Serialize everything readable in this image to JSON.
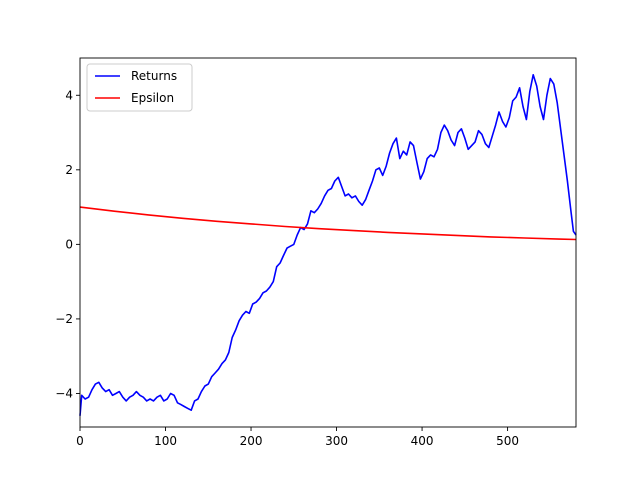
{
  "chart_data": {
    "type": "line",
    "title": "",
    "xlabel": "",
    "ylabel": "",
    "xlim": [
      0,
      580
    ],
    "ylim": [
      -4.9,
      5.0
    ],
    "grid": false,
    "legend_position": "upper-left",
    "x_ticks": [
      0,
      100,
      200,
      300,
      400,
      500
    ],
    "x_tick_labels": [
      "0",
      "100",
      "200",
      "300",
      "400",
      "500"
    ],
    "y_ticks": [
      -4,
      -2,
      0,
      2,
      4
    ],
    "y_tick_labels": [
      "−4",
      "−2",
      "0",
      "2",
      "4"
    ],
    "series": [
      {
        "name": "Returns",
        "color": "#0000ff",
        "points": [
          [
            0,
            -4.6
          ],
          [
            2,
            -4.05
          ],
          [
            6,
            -4.15
          ],
          [
            10,
            -4.1
          ],
          [
            14,
            -3.9
          ],
          [
            18,
            -3.75
          ],
          [
            22,
            -3.7
          ],
          [
            26,
            -3.85
          ],
          [
            30,
            -3.95
          ],
          [
            34,
            -3.9
          ],
          [
            38,
            -4.05
          ],
          [
            42,
            -4.0
          ],
          [
            46,
            -3.95
          ],
          [
            50,
            -4.1
          ],
          [
            54,
            -4.2
          ],
          [
            58,
            -4.1
          ],
          [
            62,
            -4.05
          ],
          [
            66,
            -3.95
          ],
          [
            70,
            -4.05
          ],
          [
            74,
            -4.1
          ],
          [
            78,
            -4.2
          ],
          [
            82,
            -4.15
          ],
          [
            86,
            -4.2
          ],
          [
            90,
            -4.1
          ],
          [
            94,
            -4.05
          ],
          [
            98,
            -4.2
          ],
          [
            102,
            -4.15
          ],
          [
            106,
            -4.0
          ],
          [
            110,
            -4.05
          ],
          [
            114,
            -4.25
          ],
          [
            118,
            -4.3
          ],
          [
            122,
            -4.35
          ],
          [
            126,
            -4.4
          ],
          [
            130,
            -4.45
          ],
          [
            134,
            -4.2
          ],
          [
            138,
            -4.15
          ],
          [
            142,
            -3.95
          ],
          [
            146,
            -3.8
          ],
          [
            150,
            -3.75
          ],
          [
            154,
            -3.55
          ],
          [
            158,
            -3.45
          ],
          [
            162,
            -3.35
          ],
          [
            166,
            -3.2
          ],
          [
            170,
            -3.1
          ],
          [
            174,
            -2.9
          ],
          [
            178,
            -2.5
          ],
          [
            182,
            -2.3
          ],
          [
            186,
            -2.05
          ],
          [
            190,
            -1.9
          ],
          [
            194,
            -1.8
          ],
          [
            198,
            -1.85
          ],
          [
            202,
            -1.6
          ],
          [
            206,
            -1.55
          ],
          [
            210,
            -1.45
          ],
          [
            214,
            -1.3
          ],
          [
            218,
            -1.25
          ],
          [
            222,
            -1.15
          ],
          [
            226,
            -1.0
          ],
          [
            230,
            -0.6
          ],
          [
            234,
            -0.5
          ],
          [
            238,
            -0.3
          ],
          [
            242,
            -0.1
          ],
          [
            246,
            -0.05
          ],
          [
            250,
            0.0
          ],
          [
            254,
            0.25
          ],
          [
            258,
            0.45
          ],
          [
            262,
            0.4
          ],
          [
            266,
            0.55
          ],
          [
            270,
            0.9
          ],
          [
            274,
            0.85
          ],
          [
            278,
            0.95
          ],
          [
            282,
            1.1
          ],
          [
            286,
            1.3
          ],
          [
            290,
            1.45
          ],
          [
            294,
            1.5
          ],
          [
            298,
            1.7
          ],
          [
            302,
            1.8
          ],
          [
            306,
            1.55
          ],
          [
            310,
            1.3
          ],
          [
            314,
            1.35
          ],
          [
            318,
            1.25
          ],
          [
            322,
            1.3
          ],
          [
            326,
            1.15
          ],
          [
            330,
            1.05
          ],
          [
            334,
            1.2
          ],
          [
            338,
            1.45
          ],
          [
            342,
            1.7
          ],
          [
            346,
            2.0
          ],
          [
            350,
            2.05
          ],
          [
            354,
            1.85
          ],
          [
            358,
            2.1
          ],
          [
            362,
            2.45
          ],
          [
            366,
            2.7
          ],
          [
            370,
            2.85
          ],
          [
            374,
            2.3
          ],
          [
            378,
            2.5
          ],
          [
            382,
            2.4
          ],
          [
            386,
            2.75
          ],
          [
            390,
            2.65
          ],
          [
            394,
            2.2
          ],
          [
            398,
            1.75
          ],
          [
            402,
            1.95
          ],
          [
            406,
            2.3
          ],
          [
            410,
            2.4
          ],
          [
            414,
            2.35
          ],
          [
            418,
            2.55
          ],
          [
            422,
            3.0
          ],
          [
            426,
            3.2
          ],
          [
            430,
            3.05
          ],
          [
            434,
            2.8
          ],
          [
            438,
            2.65
          ],
          [
            442,
            3.0
          ],
          [
            446,
            3.1
          ],
          [
            450,
            2.85
          ],
          [
            454,
            2.55
          ],
          [
            458,
            2.65
          ],
          [
            462,
            2.75
          ],
          [
            466,
            3.05
          ],
          [
            470,
            2.95
          ],
          [
            474,
            2.7
          ],
          [
            478,
            2.6
          ],
          [
            482,
            2.9
          ],
          [
            486,
            3.2
          ],
          [
            490,
            3.55
          ],
          [
            494,
            3.3
          ],
          [
            498,
            3.15
          ],
          [
            502,
            3.4
          ],
          [
            506,
            3.85
          ],
          [
            510,
            3.95
          ],
          [
            514,
            4.2
          ],
          [
            518,
            3.7
          ],
          [
            522,
            3.35
          ],
          [
            526,
            4.1
          ],
          [
            530,
            4.55
          ],
          [
            534,
            4.25
          ],
          [
            538,
            3.7
          ],
          [
            542,
            3.35
          ],
          [
            546,
            4.0
          ],
          [
            550,
            4.45
          ],
          [
            554,
            4.3
          ],
          [
            558,
            3.8
          ],
          [
            562,
            3.1
          ],
          [
            566,
            2.4
          ],
          [
            570,
            1.7
          ],
          [
            574,
            0.9
          ],
          [
            577,
            0.35
          ],
          [
            580,
            0.25
          ]
        ]
      },
      {
        "name": "Epsilon",
        "color": "#ff0000",
        "points": [
          [
            0,
            1.0
          ],
          [
            40,
            0.89
          ],
          [
            80,
            0.79
          ],
          [
            120,
            0.7
          ],
          [
            160,
            0.62
          ],
          [
            200,
            0.55
          ],
          [
            240,
            0.48
          ],
          [
            280,
            0.42
          ],
          [
            320,
            0.37
          ],
          [
            360,
            0.32
          ],
          [
            400,
            0.28
          ],
          [
            440,
            0.24
          ],
          [
            480,
            0.2
          ],
          [
            520,
            0.17
          ],
          [
            560,
            0.14
          ],
          [
            580,
            0.13
          ]
        ]
      }
    ]
  }
}
